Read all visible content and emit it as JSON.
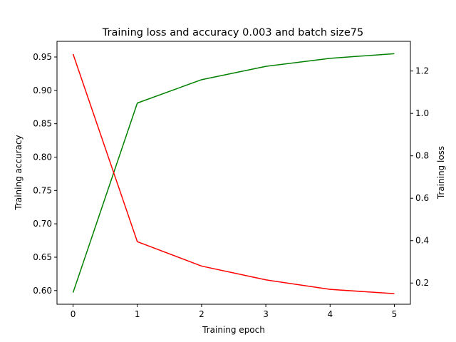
{
  "chart_data": {
    "type": "line",
    "title": "Training loss and accuracy 0.003 and batch size75",
    "xlabel": "Training epoch",
    "ylabel_left": "Training accuracy",
    "ylabel_right": "Training loss",
    "x": [
      0,
      1,
      2,
      3,
      4,
      5
    ],
    "xlim": [
      -0.25,
      5.25
    ],
    "ylim_left": [
      0.5795,
      0.9735
    ],
    "ylim_right": [
      0.1,
      1.34
    ],
    "xticks": [
      0,
      1,
      2,
      3,
      4,
      5
    ],
    "yticks_left": [
      0.6,
      0.65,
      0.7,
      0.75,
      0.8,
      0.85,
      0.9,
      0.95
    ],
    "yticks_right": [
      0.2,
      0.4,
      0.6,
      0.8,
      1.0,
      1.2
    ],
    "grid": false,
    "series": [
      {
        "axis": "left",
        "color": "#008000",
        "values": [
          0.597,
          0.881,
          0.916,
          0.936,
          0.948,
          0.955
        ]
      },
      {
        "axis": "right",
        "color": "#ff0000",
        "values": [
          1.28,
          0.395,
          0.28,
          0.215,
          0.17,
          0.15
        ]
      }
    ]
  }
}
